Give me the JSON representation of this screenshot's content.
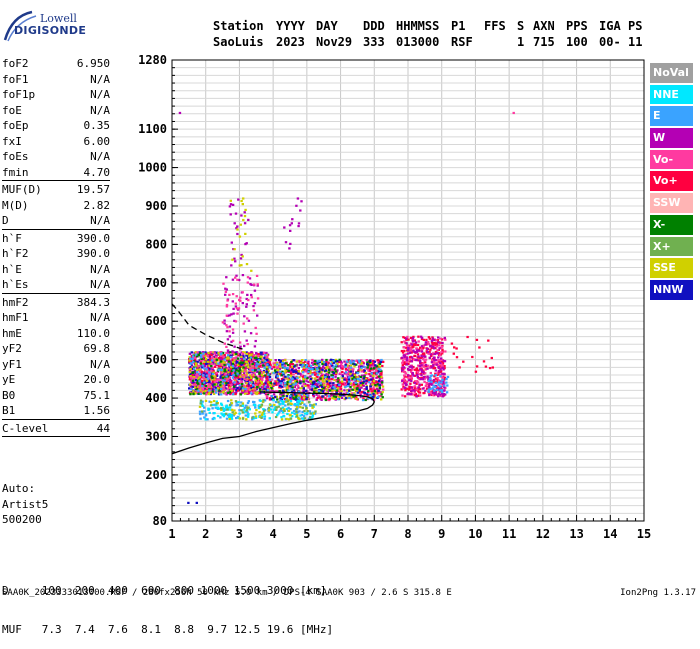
{
  "logo": {
    "line1": "Lowell",
    "line2": "DIGISONDE"
  },
  "header": {
    "station_label": "Station",
    "station": "SaoLuis",
    "yyyy_label": "YYYY",
    "year": "2023",
    "day_label": "DAY",
    "day": "Nov29",
    "ddd_label": "DDD",
    "ddd": "333",
    "hms_label": "HHMMSS",
    "hms": "013000",
    "p1_label": "P1",
    "p1": "RSF",
    "ffs_label": "FFS",
    "ffs": "",
    "s_label": "S",
    "s": "1",
    "axn_label": "AXN",
    "axn": "715",
    "pps_label": "PPS",
    "pps": "100",
    "iga_label": "IGA",
    "iga": "00-",
    "ps_label": "PS",
    "ps": "11"
  },
  "params": {
    "g1": [
      {
        "label": "foF2",
        "value": "6.950"
      },
      {
        "label": "foF1",
        "value": "N/A"
      },
      {
        "label": "foF1p",
        "value": "N/A"
      },
      {
        "label": "foE",
        "value": "N/A"
      },
      {
        "label": "foEp",
        "value": "0.35"
      },
      {
        "label": "fxI",
        "value": "6.00"
      },
      {
        "label": "foEs",
        "value": "N/A"
      },
      {
        "label": "fmin",
        "value": "4.70"
      }
    ],
    "g2": [
      {
        "label": "MUF(D)",
        "value": "19.57"
      },
      {
        "label": "M(D)",
        "value": "2.82"
      },
      {
        "label": "D",
        "value": "N/A"
      }
    ],
    "g3": [
      {
        "label": "h`F",
        "value": "390.0"
      },
      {
        "label": "h`F2",
        "value": "390.0"
      },
      {
        "label": "h`E",
        "value": "N/A"
      },
      {
        "label": "h`Es",
        "value": "N/A"
      }
    ],
    "g4": [
      {
        "label": "hmF2",
        "value": "384.3"
      },
      {
        "label": "hmF1",
        "value": "N/A"
      },
      {
        "label": "hmE",
        "value": "110.0"
      },
      {
        "label": "yF2",
        "value": "69.8"
      },
      {
        "label": "yF1",
        "value": "N/A"
      },
      {
        "label": "yE",
        "value": "20.0"
      },
      {
        "label": "B0",
        "value": "75.1"
      },
      {
        "label": "B1",
        "value": "1.56"
      }
    ],
    "g5": [
      {
        "label": "C-level",
        "value": "44"
      }
    ]
  },
  "auto": {
    "line1": "Auto:",
    "line2": "Artist5",
    "line3": "500200"
  },
  "legend": [
    {
      "label": "NoVal",
      "color": "#a0a0a0"
    },
    {
      "label": "NNE",
      "color": "#00e8ff"
    },
    {
      "label": "E",
      "color": "#3aa3ff"
    },
    {
      "label": "W",
      "color": "#b400b4"
    },
    {
      "label": "Vo-",
      "color": "#ff3aa0"
    },
    {
      "label": "Vo+",
      "color": "#ff0040"
    },
    {
      "label": "SSW",
      "color": "#ffb4b4"
    },
    {
      "label": "X-",
      "color": "#008000"
    },
    {
      "label": "X+",
      "color": "#70b050"
    },
    {
      "label": "SSE",
      "color": "#d0d000"
    },
    {
      "label": "NNW",
      "color": "#1010c0"
    }
  ],
  "bottom": {
    "d_row": "D     100  200  400  600  800 1000 1500 3000 [km]",
    "muf_row": "MUF   7.3  7.4  7.6  8.1  8.8  9.7 12.5 19.6 [MHz]"
  },
  "footer": {
    "left": "SAA0K_2023333013000.RSF / 280fx256h 50 kHz 5.0 km / DPS-4 SAA0K 903 / 2.6 S 315.8 E",
    "version": "Ion2Png 1.3.17"
  },
  "chart_data": {
    "type": "scatter",
    "title": "",
    "xlabel": "",
    "ylabel": "",
    "xlim": [
      1,
      15
    ],
    "ylim": [
      80,
      1280
    ],
    "xticks": [
      1,
      2,
      3,
      4,
      5,
      6,
      7,
      8,
      9,
      10,
      11,
      12,
      13,
      14,
      15
    ],
    "yticks": [
      80,
      200,
      300,
      400,
      500,
      600,
      700,
      800,
      900,
      1000,
      1100,
      1280
    ],
    "grid": true,
    "echo_clusters": [
      {
        "x": [
          1.5,
          3.8
        ],
        "y": [
          415,
          520
        ],
        "color": "#b400b4",
        "density": 0.8
      },
      {
        "x": [
          1.5,
          3.8
        ],
        "y": [
          415,
          520
        ],
        "color": "#1010c0",
        "density": 0.45
      },
      {
        "x": [
          1.5,
          3.8
        ],
        "y": [
          415,
          520
        ],
        "color": "#ff0040",
        "density": 0.35
      },
      {
        "x": [
          1.5,
          3.8
        ],
        "y": [
          415,
          520
        ],
        "color": "#d0d000",
        "density": 0.35
      },
      {
        "x": [
          1.5,
          3.8
        ],
        "y": [
          415,
          520
        ],
        "color": "#ff3aa0",
        "density": 0.3
      },
      {
        "x": [
          1.5,
          3.8
        ],
        "y": [
          415,
          520
        ],
        "color": "#008000",
        "density": 0.12
      },
      {
        "x": [
          1.5,
          3.8
        ],
        "y": [
          415,
          520
        ],
        "color": "#3aa3ff",
        "density": 0.12
      },
      {
        "x": [
          3.8,
          7.2
        ],
        "y": [
          400,
          500
        ],
        "color": "#b400b4",
        "density": 0.45
      },
      {
        "x": [
          3.8,
          7.2
        ],
        "y": [
          400,
          500
        ],
        "color": "#ff3aa0",
        "density": 0.3
      },
      {
        "x": [
          3.8,
          7.2
        ],
        "y": [
          400,
          500
        ],
        "color": "#ff0040",
        "density": 0.25
      },
      {
        "x": [
          3.8,
          7.2
        ],
        "y": [
          400,
          500
        ],
        "color": "#d0d000",
        "density": 0.25
      },
      {
        "x": [
          3.8,
          7.2
        ],
        "y": [
          400,
          500
        ],
        "color": "#008000",
        "density": 0.12
      },
      {
        "x": [
          3.8,
          7.2
        ],
        "y": [
          400,
          500
        ],
        "color": "#1010c0",
        "density": 0.18
      },
      {
        "x": [
          3.8,
          7.2
        ],
        "y": [
          400,
          500
        ],
        "color": "#3aa3ff",
        "density": 0.12
      },
      {
        "x": [
          1.8,
          5.2
        ],
        "y": [
          350,
          395
        ],
        "color": "#3aa3ff",
        "density": 0.35
      },
      {
        "x": [
          1.8,
          5.2
        ],
        "y": [
          350,
          395
        ],
        "color": "#00e8ff",
        "density": 0.25
      },
      {
        "x": [
          1.8,
          5.2
        ],
        "y": [
          350,
          395
        ],
        "color": "#d0d000",
        "density": 0.15
      },
      {
        "x": [
          1.8,
          5.2
        ],
        "y": [
          350,
          395
        ],
        "color": "#70b050",
        "density": 0.15
      },
      {
        "x": [
          7.8,
          9.1
        ],
        "y": [
          410,
          560
        ],
        "color": "#ff0040",
        "density": 0.55
      },
      {
        "x": [
          7.8,
          9.1
        ],
        "y": [
          410,
          560
        ],
        "color": "#ff3aa0",
        "density": 0.35
      },
      {
        "x": [
          7.8,
          9.1
        ],
        "y": [
          410,
          560
        ],
        "color": "#b400b4",
        "density": 0.35
      },
      {
        "x": [
          8.6,
          9.2
        ],
        "y": [
          420,
          460
        ],
        "color": "#3aa3ff",
        "density": 0.4
      },
      {
        "x": [
          2.5,
          3.5
        ],
        "y": [
          520,
          720
        ],
        "color": "#b400b4",
        "density": 0.12
      },
      {
        "x": [
          2.5,
          3.5
        ],
        "y": [
          520,
          720
        ],
        "color": "#ff3aa0",
        "density": 0.08
      },
      {
        "x": [
          2.7,
          3.3
        ],
        "y": [
          720,
          930
        ],
        "color": "#b400b4",
        "density": 0.06
      },
      {
        "x": [
          2.7,
          3.3
        ],
        "y": [
          720,
          930
        ],
        "color": "#d0d000",
        "density": 0.04
      },
      {
        "x": [
          4.2,
          4.8
        ],
        "y": [
          780,
          930
        ],
        "color": "#b400b4",
        "density": 0.05
      },
      {
        "x": [
          9.2,
          10.5
        ],
        "y": [
          470,
          560
        ],
        "color": "#ff0040",
        "density": 0.05
      }
    ],
    "isolated_points": [
      {
        "x": 1.2,
        "y": 1145,
        "color": "#b400b4"
      },
      {
        "x": 11.1,
        "y": 1145,
        "color": "#ff3aa0"
      },
      {
        "x": 1.45,
        "y": 130,
        "color": "#1010c0"
      },
      {
        "x": 1.7,
        "y": 130,
        "color": "#1010c0"
      }
    ],
    "trace_lower": {
      "color": "#000000",
      "x": [
        1.0,
        1.5,
        2.0,
        2.5,
        3.0,
        3.5,
        4.0,
        4.5,
        5.0,
        5.5,
        6.0,
        6.5,
        6.8,
        6.95,
        7.0,
        6.95,
        6.8,
        6.5,
        6.0,
        5.5,
        5.0,
        4.5,
        4.0,
        3.6
      ],
      "y": [
        255,
        270,
        283,
        295,
        300,
        313,
        323,
        333,
        342,
        350,
        358,
        366,
        373,
        382,
        390,
        398,
        403,
        407,
        410,
        412,
        413,
        414,
        415,
        416
      ]
    },
    "trace_dashed": {
      "color": "#000000",
      "x": [
        1.0,
        1.2,
        1.5,
        2.0,
        2.5,
        3.0,
        3.2
      ],
      "y": [
        645,
        625,
        590,
        565,
        545,
        530,
        525
      ]
    }
  }
}
